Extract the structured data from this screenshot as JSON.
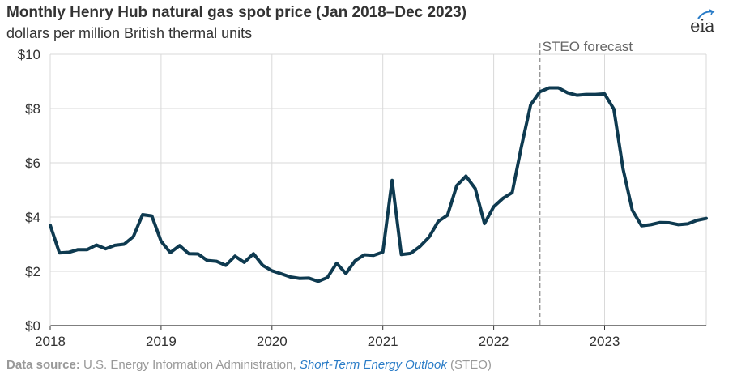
{
  "header": {
    "title": "Monthly Henry Hub natural gas spot price (Jan 2018–Dec 2023)",
    "subtitle": "dollars per million British thermal units"
  },
  "logo": {
    "text": "eia",
    "icon": "eia-logo-icon"
  },
  "source": {
    "label": "Data source:",
    "agency": "U.S. Energy Information Administration,",
    "publication": "Short-Term Energy Outlook",
    "suffix": "(STEO)"
  },
  "colors": {
    "line": "#0e3a50",
    "grid": "#d9d9d9",
    "axis": "#333333",
    "forecast": "#999999"
  },
  "chart_data": {
    "type": "line",
    "title": "Monthly Henry Hub natural gas spot price (Jan 2018–Dec 2023)",
    "ylabel": "dollars per million British thermal units",
    "xlabel": "",
    "xlim": [
      2018.0,
      2023.9167
    ],
    "ylim": [
      0,
      10
    ],
    "yticks": [
      0,
      2,
      4,
      6,
      8,
      10
    ],
    "ytick_labels": [
      "$0",
      "$2",
      "$4",
      "$6",
      "$8",
      "$10"
    ],
    "xticks": [
      2018,
      2019,
      2020,
      2021,
      2022,
      2023
    ],
    "xtick_labels": [
      "2018",
      "2019",
      "2020",
      "2021",
      "2022",
      "2023"
    ],
    "grid": true,
    "forecast_start": 2022.4167,
    "forecast_label": "STEO forecast",
    "series": [
      {
        "name": "",
        "x": [
          2018.0,
          2018.0833,
          2018.1667,
          2018.25,
          2018.3333,
          2018.4167,
          2018.5,
          2018.5833,
          2018.6667,
          2018.75,
          2018.8333,
          2018.9167,
          2019.0,
          2019.0833,
          2019.1667,
          2019.25,
          2019.3333,
          2019.4167,
          2019.5,
          2019.5833,
          2019.6667,
          2019.75,
          2019.8333,
          2019.9167,
          2020.0,
          2020.0833,
          2020.1667,
          2020.25,
          2020.3333,
          2020.4167,
          2020.5,
          2020.5833,
          2020.6667,
          2020.75,
          2020.8333,
          2020.9167,
          2021.0,
          2021.0833,
          2021.1667,
          2021.25,
          2021.3333,
          2021.4167,
          2021.5,
          2021.5833,
          2021.6667,
          2021.75,
          2021.8333,
          2021.9167,
          2022.0,
          2022.0833,
          2022.1667,
          2022.25,
          2022.3333,
          2022.4167,
          2022.5,
          2022.5833,
          2022.6667,
          2022.75,
          2022.8333,
          2022.9167,
          2023.0,
          2023.0833,
          2023.1667,
          2023.25,
          2023.3333,
          2023.4167,
          2023.5,
          2023.5833,
          2023.6667,
          2023.75,
          2023.8333,
          2023.9167
        ],
        "values": [
          3.7,
          2.68,
          2.7,
          2.8,
          2.8,
          2.97,
          2.83,
          2.96,
          3.0,
          3.28,
          4.09,
          4.04,
          3.11,
          2.69,
          2.95,
          2.65,
          2.64,
          2.4,
          2.37,
          2.22,
          2.56,
          2.33,
          2.65,
          2.22,
          2.02,
          1.91,
          1.79,
          1.74,
          1.75,
          1.63,
          1.77,
          2.3,
          1.92,
          2.39,
          2.61,
          2.59,
          2.71,
          5.35,
          2.62,
          2.66,
          2.91,
          3.26,
          3.84,
          4.07,
          5.16,
          5.51,
          5.05,
          3.76,
          4.38,
          4.69,
          4.9,
          6.6,
          8.14,
          8.62,
          8.76,
          8.76,
          8.58,
          8.49,
          8.52,
          8.52,
          8.54,
          7.98,
          5.77,
          4.25,
          3.68,
          3.72,
          3.8,
          3.79,
          3.72,
          3.75,
          3.88,
          3.95
        ]
      }
    ]
  }
}
